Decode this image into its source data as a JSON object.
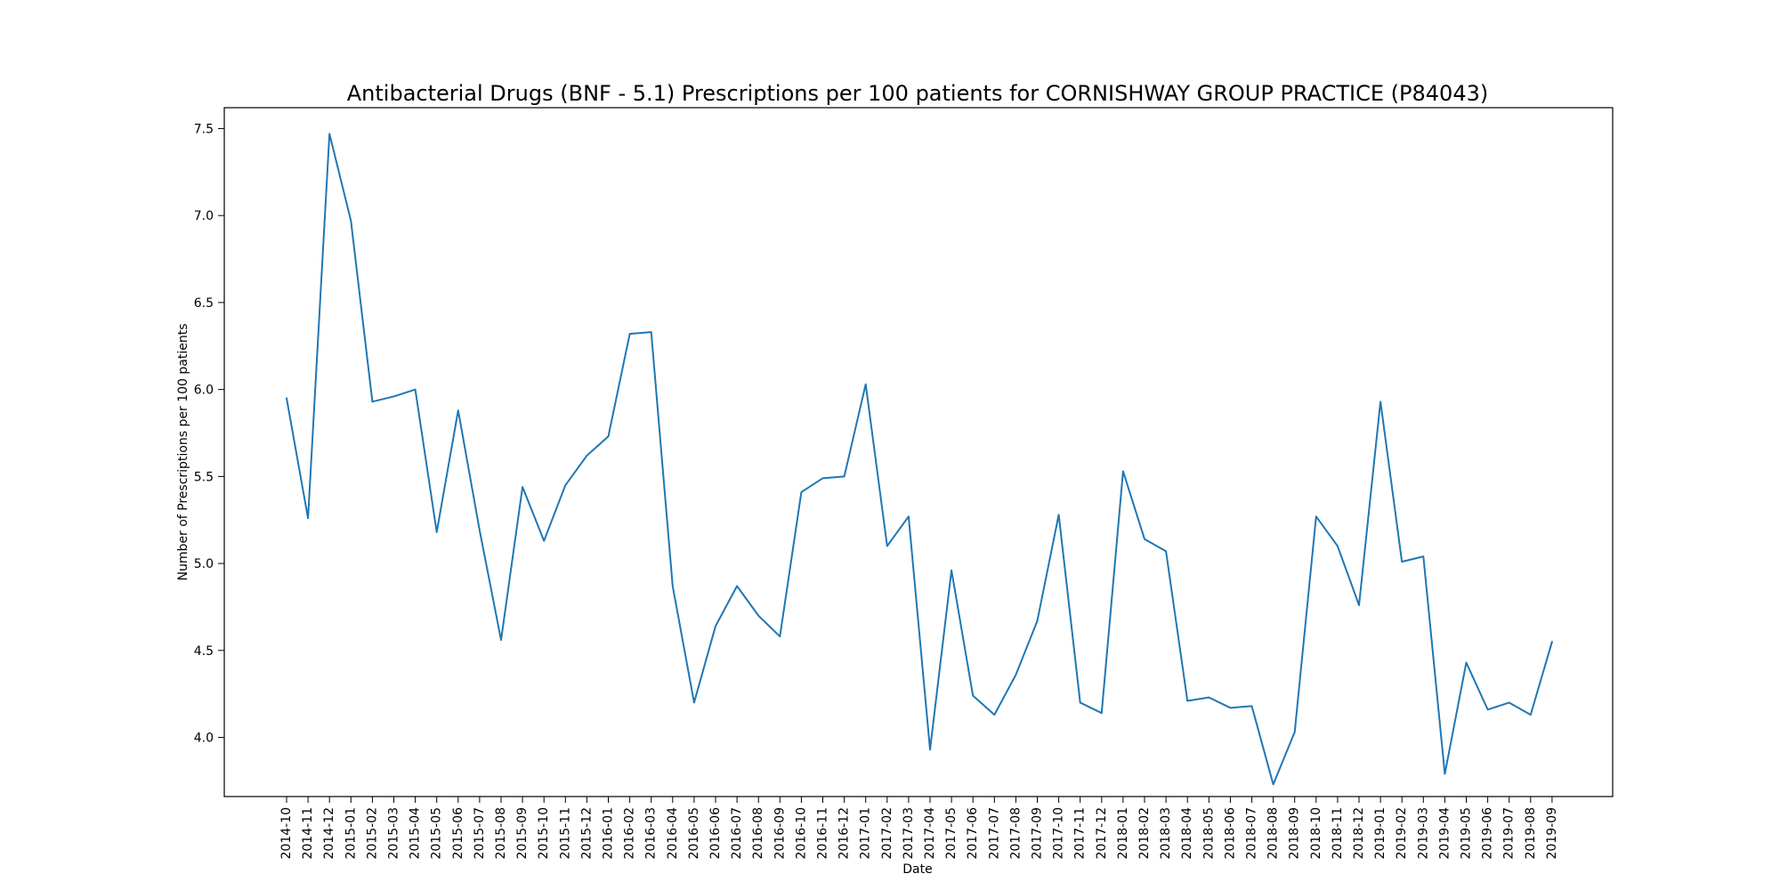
{
  "chart_data": {
    "type": "line",
    "title": "Antibacterial Drugs (BNF - 5.1) Prescriptions per 100 patients for CORNISHWAY GROUP PRACTICE (P84043)",
    "xlabel": "Date",
    "ylabel": "Number of Prescriptions per 100 patients",
    "ylim": [
      3.66,
      7.62
    ],
    "yticks": [
      4.0,
      4.5,
      5.0,
      5.5,
      6.0,
      6.5,
      7.0,
      7.5
    ],
    "ytick_labels": [
      "4.0",
      "4.5",
      "5.0",
      "5.5",
      "6.0",
      "6.5",
      "7.0",
      "7.5"
    ],
    "grid": false,
    "legend": "none",
    "line_color": "#1f77b4",
    "x": [
      "2014-10",
      "2014-11",
      "2014-12",
      "2015-01",
      "2015-02",
      "2015-03",
      "2015-04",
      "2015-05",
      "2015-06",
      "2015-07",
      "2015-08",
      "2015-09",
      "2015-10",
      "2015-11",
      "2015-12",
      "2016-01",
      "2016-02",
      "2016-03",
      "2016-04",
      "2016-05",
      "2016-06",
      "2016-07",
      "2016-08",
      "2016-09",
      "2016-10",
      "2016-11",
      "2016-12",
      "2017-01",
      "2017-02",
      "2017-03",
      "2017-04",
      "2017-05",
      "2017-06",
      "2017-07",
      "2017-08",
      "2017-09",
      "2017-10",
      "2017-11",
      "2017-12",
      "2018-01",
      "2018-02",
      "2018-03",
      "2018-04",
      "2018-05",
      "2018-06",
      "2018-07",
      "2018-08",
      "2018-09",
      "2018-10",
      "2018-11",
      "2018-12",
      "2019-01",
      "2019-02",
      "2019-03",
      "2019-04",
      "2019-05",
      "2019-06",
      "2019-07",
      "2019-08",
      "2019-09"
    ],
    "series": [
      {
        "values": [
          5.95,
          5.26,
          7.47,
          6.97,
          5.93,
          5.96,
          6.0,
          5.18,
          5.88,
          5.19,
          4.56,
          5.44,
          5.13,
          5.45,
          5.62,
          5.73,
          6.32,
          6.33,
          4.87,
          4.2,
          4.64,
          4.87,
          4.7,
          4.58,
          5.41,
          5.49,
          5.5,
          6.03,
          5.1,
          5.27,
          3.93,
          4.96,
          4.24,
          4.13,
          4.36,
          4.67,
          5.28,
          4.2,
          4.14,
          5.53,
          5.14,
          5.07,
          4.21,
          4.23,
          4.17,
          4.18,
          3.73,
          4.03,
          5.27,
          5.1,
          4.76,
          5.93,
          5.01,
          5.04,
          3.79,
          4.43,
          4.16,
          4.2,
          4.13,
          4.55
        ]
      }
    ]
  }
}
